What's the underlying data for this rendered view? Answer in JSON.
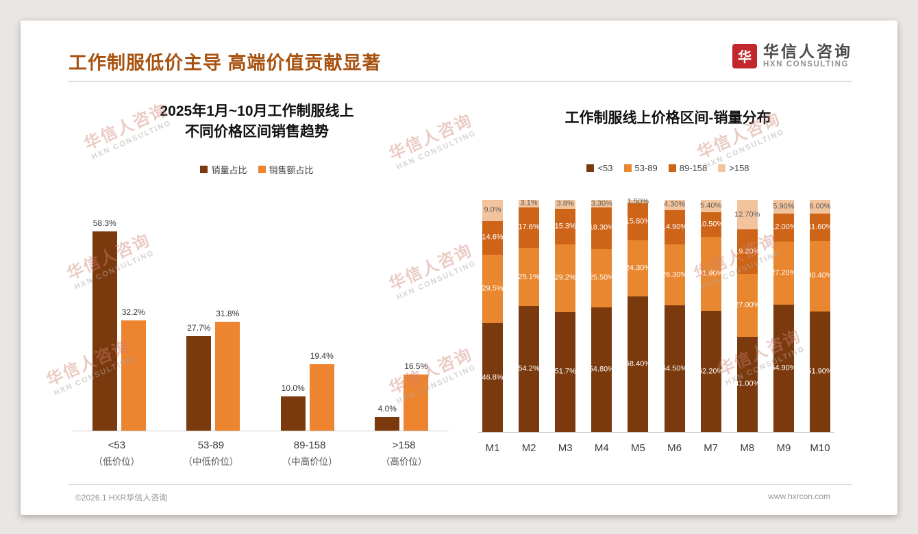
{
  "slide": {
    "title": "工作制服低价主导 高端价值贡献显著",
    "logo": {
      "cn": "华信人咨询",
      "en": "HXN CONSULTING",
      "mark": "华"
    },
    "watermark": {
      "line1": "华信人咨询",
      "line2": "HXN CONSULTING"
    },
    "footer": {
      "left": "©2026.1 HXR华信人咨询",
      "right": "www.hxrcon.com"
    }
  },
  "colors": {
    "title": "#A8520F",
    "logo_red": "#C2272D",
    "dark_brown": "#7B3A0E",
    "orange": "#ED8430",
    "deep_orange": "#CE6418",
    "pale_orange": "#F2C49E"
  },
  "chart_data": [
    {
      "type": "bar",
      "title_lines": [
        "2025年1月~10月工作制服线上",
        "不同价格区间销售趋势"
      ],
      "categories": [
        "<53",
        "53-89",
        "89-158",
        ">158"
      ],
      "category_sublabels": [
        "（低价位）",
        "（中低价位）",
        "（中高价位）",
        "（高价位）"
      ],
      "series": [
        {
          "name": "销量占比",
          "color": "#7B3A0E",
          "values": [
            58.3,
            27.7,
            10.0,
            4.0
          ],
          "labels": [
            "58.3%",
            "27.7%",
            "10.0%",
            "4.0%"
          ]
        },
        {
          "name": "销售额占比",
          "color": "#ED8430",
          "values": [
            32.2,
            31.8,
            19.4,
            16.5
          ],
          "labels": [
            "32.2%",
            "31.8%",
            "19.4%",
            "16.5%"
          ]
        }
      ],
      "ylim": [
        0,
        60
      ],
      "grid": false,
      "legend_position": "top"
    },
    {
      "type": "stacked-bar",
      "title": "工作制服线上价格区间-销量分布",
      "categories": [
        "M1",
        "M2",
        "M3",
        "M4",
        "M5",
        "M6",
        "M7",
        "M8",
        "M9",
        "M10"
      ],
      "series": [
        {
          "name": "<53",
          "color": "#7B3A0E",
          "label_color": "#ffffff",
          "values": [
            46.8,
            54.2,
            51.7,
            54.8,
            58.4,
            54.5,
            52.2,
            41.0,
            54.9,
            51.9
          ],
          "labels": [
            "46.8%",
            "54.2%",
            "51.7%",
            "54.80%",
            "58.40%",
            "54.50%",
            "52.20%",
            "41.00%",
            "54.90%",
            "51.90%"
          ]
        },
        {
          "name": "53-89",
          "color": "#E8872F",
          "label_color": "#ffffff",
          "values": [
            29.5,
            25.1,
            29.2,
            25.5,
            24.3,
            26.3,
            31.9,
            27.0,
            27.2,
            30.4
          ],
          "labels": [
            "29.5%",
            "25.1%",
            "29.2%",
            "25.50%",
            "24.30%",
            "26.30%",
            "31.90%",
            "27.00%",
            "27.20%",
            "30.40%"
          ]
        },
        {
          "name": "89-158",
          "color": "#CE6418",
          "label_color": "#ffffff",
          "values": [
            14.6,
            17.6,
            15.3,
            18.3,
            15.8,
            14.9,
            10.5,
            19.2,
            12.0,
            11.6
          ],
          "labels": [
            "14.6%",
            "17.6%",
            "15.3%",
            "18.30%",
            "15.80%",
            "14.90%",
            "10.50%",
            "19.20%",
            "12.00%",
            "11.60%"
          ]
        },
        {
          "name": ">158",
          "color": "#F2C49E",
          "label_color": "#5a5a5a",
          "values": [
            9.0,
            3.1,
            3.8,
            3.3,
            1.5,
            4.3,
            5.4,
            12.7,
            5.9,
            6.0
          ],
          "labels": [
            "9.0%",
            "3.1%",
            "3.8%",
            "3.30%",
            "1.50%",
            "4.30%",
            "5.40%",
            "12.70%",
            "5.90%",
            "6.00%"
          ]
        }
      ],
      "ylim": [
        0,
        100
      ],
      "grid": false,
      "legend_position": "top"
    }
  ]
}
